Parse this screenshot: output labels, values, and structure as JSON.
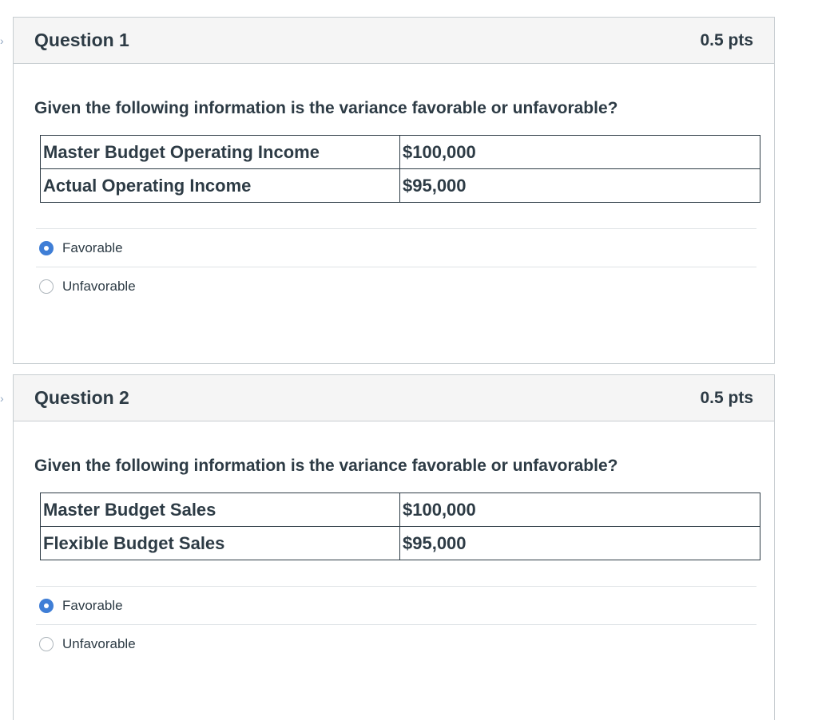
{
  "questions": [
    {
      "title": "Question 1",
      "points": "0.5 pts",
      "prompt": "Given the following information is the variance favorable or unfavorable?",
      "table": [
        {
          "label": "Master Budget Operating Income",
          "value": "$100,000"
        },
        {
          "label": "Actual Operating Income",
          "value": "$95,000"
        }
      ],
      "answers": [
        {
          "label": "Favorable",
          "selected": true
        },
        {
          "label": "Unfavorable",
          "selected": false
        }
      ]
    },
    {
      "title": "Question 2",
      "points": "0.5 pts",
      "prompt": "Given the following information is the variance favorable or unfavorable?",
      "table": [
        {
          "label": "Master Budget Sales",
          "value": "$100,000"
        },
        {
          "label": "Flexible Budget Sales",
          "value": "$95,000"
        }
      ],
      "answers": [
        {
          "label": "Favorable",
          "selected": true
        },
        {
          "label": "Unfavorable",
          "selected": false
        }
      ]
    }
  ],
  "colors": {
    "accent": "#3f7ed6",
    "header_bg": "#f5f5f5",
    "border": "#c7cdd1",
    "text": "#2d3b45"
  }
}
